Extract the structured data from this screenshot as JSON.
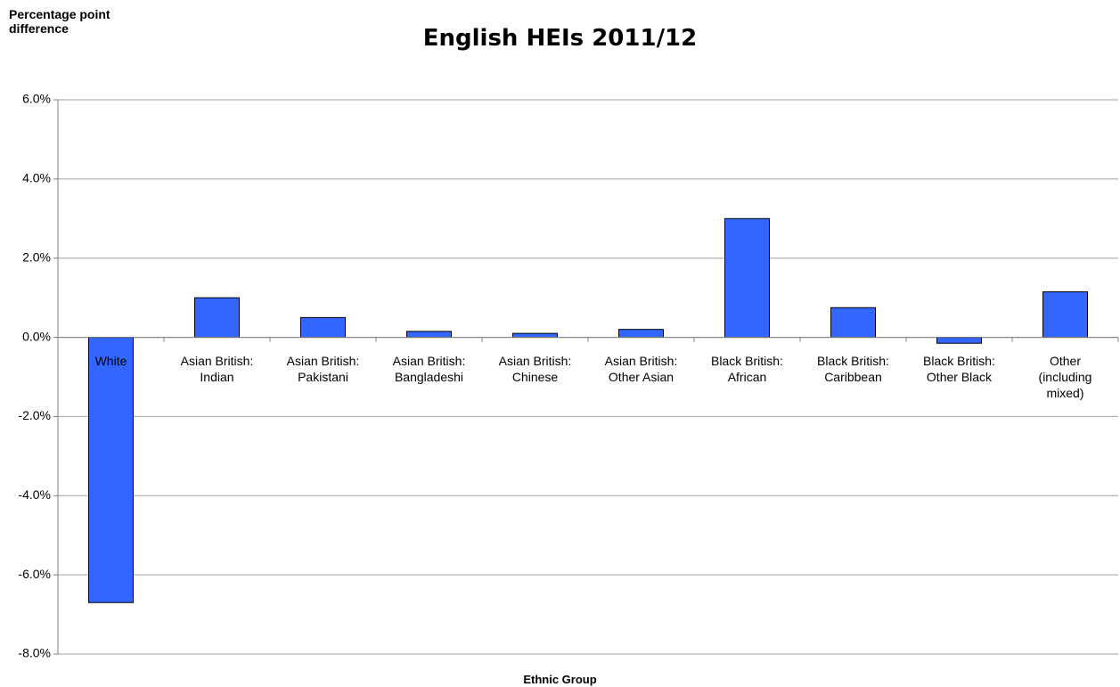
{
  "chart_data": {
    "type": "bar",
    "title": "English HEIs 2011/12",
    "y_label": "Percentage point difference",
    "x_label": "Ethnic Group",
    "categories": [
      "White",
      "Asian British: Indian",
      "Asian British: Pakistani",
      "Asian British: Bangladeshi",
      "Asian British: Chinese",
      "Asian British: Other Asian",
      "Black British: African",
      "Black British: Caribbean",
      "Black British: Other Black",
      "Other (including mixed)"
    ],
    "values": [
      -6.7,
      1.0,
      0.5,
      0.15,
      0.1,
      0.2,
      3.0,
      0.75,
      -0.15,
      1.15
    ],
    "color": "#3366ff",
    "ylim": [
      -8,
      6
    ],
    "yticks": [
      {
        "value": -8,
        "label": "-8.0%"
      },
      {
        "value": -6,
        "label": "-6.0%"
      },
      {
        "value": -4,
        "label": "-4.0%"
      },
      {
        "value": -2,
        "label": "-2.0%"
      },
      {
        "value": 0,
        "label": "0.0%"
      },
      {
        "value": 2,
        "label": "2.0%"
      },
      {
        "value": 4,
        "label": "4.0%"
      },
      {
        "value": 6,
        "label": "6.0%"
      }
    ],
    "grid": true
  }
}
